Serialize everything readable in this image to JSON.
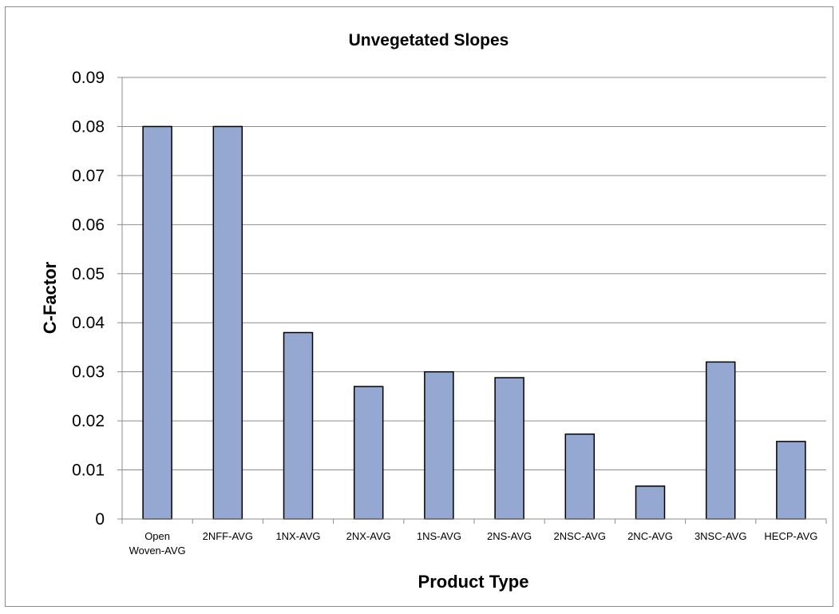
{
  "chart_data": {
    "type": "bar",
    "title": "Unvegetated Slopes",
    "xlabel": "Product Type",
    "ylabel": "C-Factor",
    "categories": [
      "Open\nWoven-AVG",
      "2NFF-AVG",
      "1NX-AVG",
      "2NX-AVG",
      "1NS-AVG",
      "2NS-AVG",
      "2NSC-AVG",
      "2NC-AVG",
      "3NSC-AVG",
      "HECP-AVG"
    ],
    "values": [
      0.08,
      0.08,
      0.038,
      0.027,
      0.03,
      0.0288,
      0.0173,
      0.0067,
      0.032,
      0.0158
    ],
    "ylim": [
      0,
      0.09
    ],
    "yticks": [
      "0",
      "0.01",
      "0.02",
      "0.03",
      "0.04",
      "0.05",
      "0.06",
      "0.07",
      "0.08",
      "0.09"
    ],
    "grid": true,
    "legend": "none",
    "colors": {
      "bar_fill": "#95a8d1",
      "bar_stroke": "#000000",
      "grid": "#8c8c8c",
      "axis": "#8c8c8c"
    }
  }
}
